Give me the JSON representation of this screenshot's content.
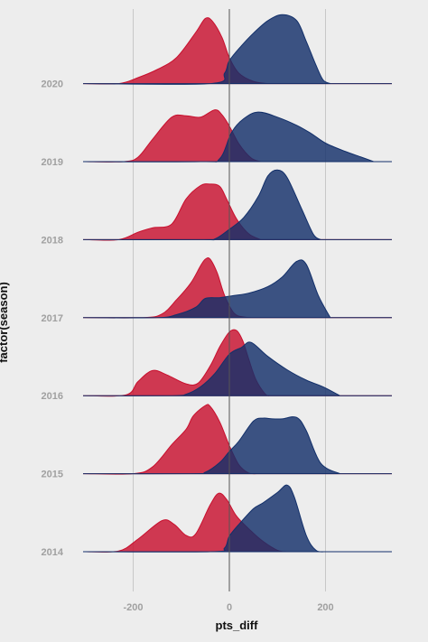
{
  "chart_data": {
    "type": "ridgeline",
    "title": "",
    "xlabel": "pts_diff",
    "ylabel": "factor(season)",
    "xlim": [
      -300,
      340
    ],
    "xticks": [
      -200,
      0,
      200
    ],
    "xtick_labels": [
      "-200",
      "0",
      "200"
    ],
    "categories": [
      "2014",
      "2015",
      "2016",
      "2017",
      "2018",
      "2019",
      "2020"
    ],
    "grid": true,
    "legend": "none",
    "colors": {
      "red": "#c8102e",
      "blue": "#13306a",
      "background": "#ededed",
      "grid": "#c8c8c8",
      "zero_line": "#555555"
    },
    "series": [
      {
        "color_key": "red",
        "seasons": {
          "2014": [
            [
              -300,
              0
            ],
            [
              -230,
              0.01
            ],
            [
              -190,
              0.17
            ],
            [
              -140,
              0.42
            ],
            [
              -115,
              0.37
            ],
            [
              -90,
              0.22
            ],
            [
              -70,
              0.24
            ],
            [
              -40,
              0.63
            ],
            [
              -22,
              0.79
            ],
            [
              -5,
              0.7
            ],
            [
              15,
              0.48
            ],
            [
              45,
              0.28
            ],
            [
              70,
              0.14
            ],
            [
              100,
              0.02
            ],
            [
              120,
              0
            ]
          ],
          "2015": [
            [
              -300,
              0
            ],
            [
              -200,
              0
            ],
            [
              -160,
              0.09
            ],
            [
              -120,
              0.39
            ],
            [
              -90,
              0.6
            ],
            [
              -75,
              0.78
            ],
            [
              -50,
              0.92
            ],
            [
              -40,
              0.91
            ],
            [
              -20,
              0.7
            ],
            [
              0,
              0.38
            ],
            [
              20,
              0.12
            ],
            [
              40,
              0.01
            ],
            [
              60,
              0
            ]
          ],
          "2016": [
            [
              -300,
              0
            ],
            [
              -215,
              0.01
            ],
            [
              -190,
              0.19
            ],
            [
              -160,
              0.34
            ],
            [
              -130,
              0.28
            ],
            [
              -90,
              0.16
            ],
            [
              -65,
              0.17
            ],
            [
              -40,
              0.4
            ],
            [
              -20,
              0.66
            ],
            [
              0,
              0.86
            ],
            [
              15,
              0.88
            ],
            [
              28,
              0.74
            ],
            [
              40,
              0.5
            ],
            [
              55,
              0.22
            ],
            [
              75,
              0.02
            ],
            [
              85,
              0
            ]
          ],
          "2017": [
            [
              -300,
              0
            ],
            [
              -180,
              0
            ],
            [
              -140,
              0.05
            ],
            [
              -110,
              0.24
            ],
            [
              -80,
              0.47
            ],
            [
              -60,
              0.7
            ],
            [
              -50,
              0.79
            ],
            [
              -40,
              0.79
            ],
            [
              -25,
              0.6
            ],
            [
              -10,
              0.3
            ],
            [
              10,
              0.06
            ],
            [
              30,
              0.01
            ],
            [
              50,
              0
            ]
          ],
          "2018": [
            [
              -300,
              0
            ],
            [
              -230,
              0
            ],
            [
              -190,
              0.1
            ],
            [
              -160,
              0.16
            ],
            [
              -120,
              0.21
            ],
            [
              -90,
              0.55
            ],
            [
              -60,
              0.73
            ],
            [
              -40,
              0.75
            ],
            [
              -20,
              0.72
            ],
            [
              -5,
              0.54
            ],
            [
              15,
              0.28
            ],
            [
              40,
              0.08
            ],
            [
              65,
              0
            ]
          ],
          "2019": [
            [
              -300,
              0
            ],
            [
              -220,
              0
            ],
            [
              -190,
              0.06
            ],
            [
              -160,
              0.3
            ],
            [
              -120,
              0.6
            ],
            [
              -90,
              0.62
            ],
            [
              -60,
              0.6
            ],
            [
              -30,
              0.7
            ],
            [
              -15,
              0.63
            ],
            [
              0,
              0.48
            ],
            [
              20,
              0.24
            ],
            [
              45,
              0.05
            ],
            [
              65,
              0
            ]
          ],
          "2020": [
            [
              -300,
              0
            ],
            [
              -230,
              0
            ],
            [
              -190,
              0.08
            ],
            [
              -150,
              0.19
            ],
            [
              -110,
              0.35
            ],
            [
              -70,
              0.69
            ],
            [
              -50,
              0.88
            ],
            [
              -35,
              0.84
            ],
            [
              -15,
              0.62
            ],
            [
              0,
              0.35
            ],
            [
              20,
              0.14
            ],
            [
              50,
              0.03
            ],
            [
              80,
              0
            ]
          ]
        }
      },
      {
        "color_key": "blue",
        "seasons": {
          "2014": [
            [
              -300,
              0
            ],
            [
              -40,
              0
            ],
            [
              -10,
              0.05
            ],
            [
              0,
              0.21
            ],
            [
              20,
              0.37
            ],
            [
              50,
              0.58
            ],
            [
              70,
              0.66
            ],
            [
              100,
              0.8
            ],
            [
              120,
              0.9
            ],
            [
              135,
              0.74
            ],
            [
              160,
              0.22
            ],
            [
              180,
              0.02
            ],
            [
              200,
              0
            ]
          ],
          "2015": [
            [
              -300,
              0
            ],
            [
              -80,
              0
            ],
            [
              -50,
              0.02
            ],
            [
              -20,
              0.15
            ],
            [
              0,
              0.3
            ],
            [
              20,
              0.44
            ],
            [
              50,
              0.71
            ],
            [
              70,
              0.75
            ],
            [
              90,
              0.74
            ],
            [
              110,
              0.74
            ],
            [
              140,
              0.76
            ],
            [
              160,
              0.58
            ],
            [
              190,
              0.14
            ],
            [
              230,
              0
            ]
          ],
          "2016": [
            [
              -300,
              0
            ],
            [
              -120,
              0
            ],
            [
              -90,
              0.02
            ],
            [
              -60,
              0.12
            ],
            [
              -30,
              0.3
            ],
            [
              0,
              0.56
            ],
            [
              25,
              0.65
            ],
            [
              45,
              0.72
            ],
            [
              80,
              0.53
            ],
            [
              120,
              0.35
            ],
            [
              160,
              0.21
            ],
            [
              195,
              0.12
            ],
            [
              230,
              0
            ]
          ],
          "2017": [
            [
              -300,
              0
            ],
            [
              -150,
              0
            ],
            [
              -110,
              0.04
            ],
            [
              -70,
              0.14
            ],
            [
              -50,
              0.26
            ],
            [
              -20,
              0.27
            ],
            [
              10,
              0.3
            ],
            [
              40,
              0.33
            ],
            [
              80,
              0.42
            ],
            [
              110,
              0.55
            ],
            [
              140,
              0.76
            ],
            [
              160,
              0.72
            ],
            [
              185,
              0.3
            ],
            [
              210,
              0
            ]
          ],
          "2018": [
            [
              -300,
              0
            ],
            [
              -60,
              0
            ],
            [
              -30,
              0.01
            ],
            [
              0,
              0.14
            ],
            [
              30,
              0.3
            ],
            [
              60,
              0.58
            ],
            [
              80,
              0.86
            ],
            [
              100,
              0.94
            ],
            [
              120,
              0.84
            ],
            [
              150,
              0.42
            ],
            [
              175,
              0.07
            ],
            [
              190,
              0
            ]
          ],
          "2019": [
            [
              -300,
              0
            ],
            [
              -60,
              0
            ],
            [
              -20,
              0.04
            ],
            [
              5,
              0.4
            ],
            [
              30,
              0.58
            ],
            [
              60,
              0.67
            ],
            [
              100,
              0.6
            ],
            [
              140,
              0.49
            ],
            [
              170,
              0.38
            ],
            [
              200,
              0.25
            ],
            [
              240,
              0.14
            ],
            [
              275,
              0.06
            ],
            [
              300,
              0
            ]
          ],
          "2020": [
            [
              -300,
              0
            ],
            [
              -40,
              0
            ],
            [
              -10,
              0.14
            ],
            [
              0,
              0.31
            ],
            [
              25,
              0.51
            ],
            [
              50,
              0.68
            ],
            [
              80,
              0.85
            ],
            [
              110,
              0.93
            ],
            [
              140,
              0.85
            ],
            [
              160,
              0.57
            ],
            [
              180,
              0.25
            ],
            [
              195,
              0.05
            ],
            [
              210,
              0
            ]
          ]
        }
      }
    ]
  }
}
